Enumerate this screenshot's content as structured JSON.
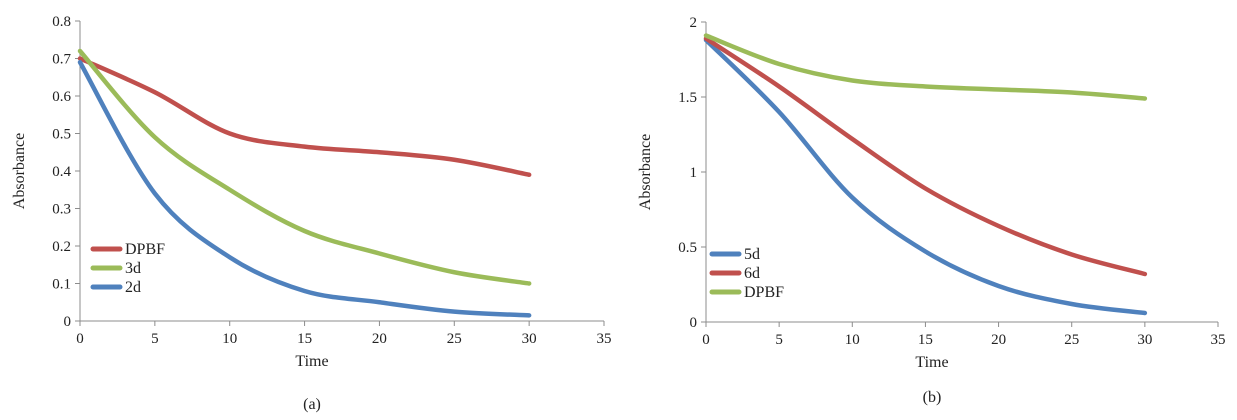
{
  "chart_data": [
    {
      "type": "line",
      "caption": "(a)",
      "xlabel": "Time",
      "ylabel": "Absorbance",
      "xlim": [
        0,
        35
      ],
      "ylim": [
        0,
        0.8
      ],
      "xticks": [
        "0",
        "5",
        "10",
        "15",
        "20",
        "25",
        "30",
        "35"
      ],
      "yticks": [
        "0",
        "0.1",
        "0.2",
        "0.3",
        "0.4",
        "0.5",
        "0.6",
        "0.7",
        "0.8"
      ],
      "grid": false,
      "legend_position": "lower-left",
      "x": [
        0,
        5,
        10,
        15,
        20,
        25,
        30
      ],
      "series": [
        {
          "name": "DPBF",
          "color": "#c0504d",
          "values": [
            0.7,
            0.61,
            0.5,
            0.465,
            0.45,
            0.43,
            0.39
          ]
        },
        {
          "name": "3d",
          "color": "#9bbb59",
          "values": [
            0.72,
            0.49,
            0.35,
            0.24,
            0.18,
            0.13,
            0.1
          ]
        },
        {
          "name": "2d",
          "color": "#4f81bd",
          "values": [
            0.69,
            0.34,
            0.17,
            0.08,
            0.05,
            0.025,
            0.015
          ]
        }
      ]
    },
    {
      "type": "line",
      "caption": "(b)",
      "xlabel": "Time",
      "ylabel": "Absorbance",
      "xlim": [
        0,
        35
      ],
      "ylim": [
        0,
        2
      ],
      "xticks": [
        "0",
        "5",
        "10",
        "15",
        "20",
        "25",
        "30",
        "35"
      ],
      "yticks": [
        "0",
        "0.5",
        "1",
        "1.5",
        "2"
      ],
      "grid": false,
      "legend_position": "lower-left",
      "x": [
        0,
        5,
        10,
        15,
        20,
        25,
        30
      ],
      "series": [
        {
          "name": "5d",
          "color": "#4f81bd",
          "values": [
            1.88,
            1.4,
            0.83,
            0.47,
            0.24,
            0.12,
            0.06
          ]
        },
        {
          "name": "6d",
          "color": "#c0504d",
          "values": [
            1.89,
            1.57,
            1.22,
            0.89,
            0.64,
            0.45,
            0.32
          ]
        },
        {
          "name": "DPBF",
          "color": "#9bbb59",
          "values": [
            1.91,
            1.72,
            1.61,
            1.57,
            1.55,
            1.53,
            1.49
          ]
        }
      ]
    }
  ]
}
